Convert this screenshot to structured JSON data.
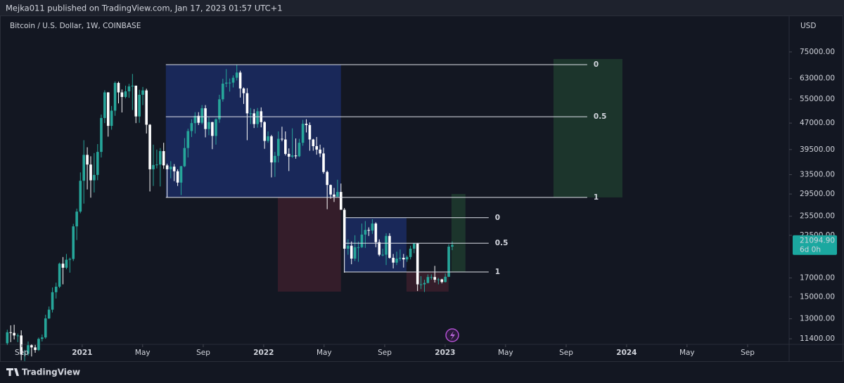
{
  "header": {
    "text": "Mejka011 published on TradingView.com, Jan 17, 2023 01:57 UTC+1"
  },
  "footer": {
    "brand": "TradingView"
  },
  "chart_data": {
    "type": "candlestick",
    "title": "Bitcoin / U.S. Dollar, 1W, COINBASE",
    "y_axis_label": "USD",
    "log_scale": true,
    "grid": false,
    "up_color": "#26a69a",
    "down_color": "#ffffff",
    "xlim": [
      2020.547,
      2024.888
    ],
    "xticks": [
      {
        "value": 2020.667,
        "label": "Sep"
      },
      2021,
      {
        "value": 2021.333,
        "label": "May"
      },
      {
        "value": 2021.667,
        "label": "Sep"
      },
      2022,
      {
        "value": 2022.333,
        "label": "May"
      },
      {
        "value": 2022.667,
        "label": "Sep"
      },
      2023,
      {
        "value": 2023.333,
        "label": "May"
      },
      {
        "value": 2023.667,
        "label": "Sep"
      },
      2024,
      {
        "value": 2024.333,
        "label": "May"
      },
      {
        "value": 2024.667,
        "label": "Sep"
      }
    ],
    "ylim": [
      10990,
      92700
    ],
    "yticks": [
      {
        "value": 75000,
        "label": "75000.00"
      },
      {
        "value": 63000,
        "label": "63000.00"
      },
      {
        "value": 55000,
        "label": "55000.00"
      },
      {
        "value": 47000,
        "label": "47000.00"
      },
      {
        "value": 39500,
        "label": "39500.00"
      },
      {
        "value": 33500,
        "label": "33500.00"
      },
      {
        "value": 29500,
        "label": "29500.00"
      },
      {
        "value": 25500,
        "label": "25500.00"
      },
      {
        "value": 22500,
        "label": "22500.00"
      },
      {
        "value": 17000,
        "label": "17000.00"
      },
      {
        "value": 15000,
        "label": "15000.00"
      },
      {
        "value": 13000,
        "label": "13000.00"
      },
      {
        "value": 11400,
        "label": "11400.00"
      }
    ],
    "last_price_label": "21094.90",
    "countdown": "6d 0h",
    "x": [
      2020.587,
      2020.606,
      2020.625,
      2020.645,
      2020.664,
      2020.683,
      2020.702,
      2020.721,
      2020.741,
      2020.76,
      2020.779,
      2020.798,
      2020.817,
      2020.836,
      2020.856,
      2020.875,
      2020.894,
      2020.913,
      2020.932,
      2020.951,
      2020.97,
      2020.99,
      2021.009,
      2021.028,
      2021.047,
      2021.066,
      2021.085,
      2021.105,
      2021.124,
      2021.143,
      2021.162,
      2021.181,
      2021.2,
      2021.219,
      2021.239,
      2021.258,
      2021.277,
      2021.296,
      2021.315,
      2021.334,
      2021.354,
      2021.373,
      2021.392,
      2021.411,
      2021.43,
      2021.449,
      2021.468,
      2021.488,
      2021.507,
      2021.526,
      2021.545,
      2021.564,
      2021.583,
      2021.603,
      2021.622,
      2021.641,
      2021.66,
      2021.679,
      2021.698,
      2021.717,
      2021.737,
      2021.756,
      2021.775,
      2021.794,
      2021.813,
      2021.832,
      2021.852,
      2021.871,
      2021.89,
      2021.909,
      2021.928,
      2021.947,
      2021.966,
      2021.986,
      2022.005,
      2022.024,
      2022.043,
      2022.062,
      2022.081,
      2022.101,
      2022.12,
      2022.139,
      2022.158,
      2022.177,
      2022.196,
      2022.216,
      2022.235,
      2022.254,
      2022.273,
      2022.292,
      2022.311,
      2022.33,
      2022.35,
      2022.369,
      2022.388,
      2022.407,
      2022.426,
      2022.445,
      2022.465,
      2022.484,
      2022.503,
      2022.522,
      2022.541,
      2022.56,
      2022.579,
      2022.599,
      2022.618,
      2022.637,
      2022.656,
      2022.675,
      2022.694,
      2022.714,
      2022.733,
      2022.752,
      2022.771,
      2022.79,
      2022.809,
      2022.829,
      2022.848,
      2022.867,
      2022.886,
      2022.905,
      2022.924,
      2022.943,
      2022.963,
      2022.982,
      2023.001,
      2023.02,
      2023.039
    ],
    "ohlc": [
      [
        11070,
        12100,
        10950,
        11900
      ],
      [
        11900,
        12450,
        11150,
        11850
      ],
      [
        11850,
        12500,
        11350,
        11650
      ],
      [
        11650,
        11800,
        11150,
        11650
      ],
      [
        11650,
        12050,
        9900,
        10280
      ],
      [
        10280,
        10600,
        9850,
        10330
      ],
      [
        10330,
        11200,
        10200,
        10930
      ],
      [
        10930,
        10990,
        10150,
        10770
      ],
      [
        10770,
        10950,
        10400,
        10590
      ],
      [
        10590,
        11490,
        10520,
        11390
      ],
      [
        11390,
        11720,
        11200,
        11500
      ],
      [
        11500,
        13350,
        11400,
        13030
      ],
      [
        13030,
        14090,
        12980,
        13800
      ],
      [
        13800,
        15970,
        13550,
        15480
      ],
      [
        15480,
        16480,
        14850,
        16050
      ],
      [
        16050,
        18800,
        15900,
        18670
      ],
      [
        18670,
        19500,
        16300,
        18180
      ],
      [
        18180,
        19900,
        18000,
        19160
      ],
      [
        19160,
        19420,
        17600,
        19250
      ],
      [
        19250,
        24250,
        19000,
        23850
      ],
      [
        23850,
        26800,
        21800,
        26280
      ],
      [
        26280,
        34000,
        26000,
        32180
      ],
      [
        32180,
        42000,
        27700,
        38150
      ],
      [
        38150,
        40100,
        30400,
        35800
      ],
      [
        35800,
        37800,
        28800,
        32280
      ],
      [
        32280,
        38600,
        29800,
        33440
      ],
      [
        33440,
        40950,
        32300,
        38900
      ],
      [
        38900,
        49700,
        37500,
        48600
      ],
      [
        48600,
        58300,
        47000,
        57500
      ],
      [
        57500,
        57600,
        43000,
        46150
      ],
      [
        46150,
        52600,
        45000,
        51000
      ],
      [
        51000,
        61800,
        49300,
        61200
      ],
      [
        61200,
        61700,
        53500,
        57500
      ],
      [
        57500,
        58600,
        50400,
        55800
      ],
      [
        55800,
        60100,
        55300,
        57900
      ],
      [
        57900,
        60800,
        55500,
        59800
      ],
      [
        59800,
        64900,
        51200,
        60100
      ],
      [
        60100,
        60100,
        47000,
        49100
      ],
      [
        49100,
        58500,
        47100,
        56600
      ],
      [
        56600,
        59600,
        52900,
        58250
      ],
      [
        58250,
        58900,
        43900,
        46500
      ],
      [
        46500,
        46700,
        30000,
        34700
      ],
      [
        34700,
        40800,
        31100,
        35700
      ],
      [
        35700,
        39500,
        34900,
        35800
      ],
      [
        35800,
        39900,
        31000,
        39100
      ],
      [
        39100,
        41300,
        34800,
        35600
      ],
      [
        35600,
        36000,
        28800,
        34700
      ],
      [
        34700,
        36600,
        32700,
        35300
      ],
      [
        35300,
        35900,
        32100,
        34250
      ],
      [
        34250,
        34700,
        31100,
        31800
      ],
      [
        31800,
        35500,
        29300,
        35400
      ],
      [
        35400,
        42600,
        35200,
        39900
      ],
      [
        39900,
        45300,
        37500,
        44600
      ],
      [
        44600,
        48200,
        42900,
        47000
      ],
      [
        47000,
        50500,
        43900,
        49300
      ],
      [
        49300,
        50500,
        46400,
        47100
      ],
      [
        47100,
        52900,
        46600,
        51800
      ],
      [
        51800,
        52900,
        42800,
        45200
      ],
      [
        45200,
        48800,
        43400,
        47300
      ],
      [
        47300,
        47400,
        39600,
        43200
      ],
      [
        43200,
        48500,
        40800,
        48200
      ],
      [
        48200,
        56600,
        47100,
        54950
      ],
      [
        54950,
        62900,
        54100,
        60900
      ],
      [
        60900,
        67000,
        59500,
        61300
      ],
      [
        61300,
        63000,
        57800,
        61300
      ],
      [
        61300,
        64300,
        59400,
        63300
      ],
      [
        63300,
        69000,
        62200,
        65500
      ],
      [
        65500,
        66300,
        55600,
        59000
      ],
      [
        59000,
        59400,
        53300,
        57200
      ],
      [
        57200,
        59100,
        42000,
        50100
      ],
      [
        50100,
        51900,
        46700,
        50100
      ],
      [
        50100,
        51500,
        45500,
        46700
      ],
      [
        46700,
        51900,
        45600,
        50800
      ],
      [
        50800,
        52100,
        45700,
        47300
      ],
      [
        47300,
        47600,
        39700,
        41800
      ],
      [
        41800,
        44500,
        41300,
        43100
      ],
      [
        43100,
        43500,
        32900,
        36300
      ],
      [
        36300,
        38900,
        33000,
        37900
      ],
      [
        37900,
        44500,
        36300,
        42400
      ],
      [
        42400,
        45900,
        41700,
        42200
      ],
      [
        42200,
        44500,
        38000,
        38400
      ],
      [
        38400,
        39800,
        34300,
        37700
      ],
      [
        37700,
        45400,
        37400,
        38000
      ],
      [
        38000,
        42500,
        37200,
        37800
      ],
      [
        37800,
        42400,
        37600,
        41300
      ],
      [
        41300,
        48000,
        40500,
        46800
      ],
      [
        46800,
        48200,
        44200,
        46400
      ],
      [
        46400,
        47200,
        39200,
        42200
      ],
      [
        42200,
        42400,
        39200,
        40400
      ],
      [
        40400,
        42900,
        38200,
        39500
      ],
      [
        39500,
        40800,
        37600,
        38500
      ],
      [
        38500,
        40000,
        33700,
        34100
      ],
      [
        34100,
        34400,
        26700,
        31300
      ],
      [
        31300,
        31400,
        28600,
        29400
      ],
      [
        29400,
        30700,
        28000,
        29000
      ],
      [
        29000,
        32400,
        29000,
        29900
      ],
      [
        29900,
        31600,
        26600,
        26600
      ],
      [
        26600,
        26900,
        17600,
        20600
      ],
      [
        20600,
        21900,
        19800,
        21000
      ],
      [
        21000,
        21600,
        18600,
        19300
      ],
      [
        19300,
        22500,
        19000,
        20800
      ],
      [
        20800,
        21600,
        18900,
        20800
      ],
      [
        20800,
        24300,
        20700,
        22600
      ],
      [
        22600,
        24700,
        20700,
        23300
      ],
      [
        23300,
        23700,
        22400,
        23200
      ],
      [
        23200,
        25000,
        22700,
        24300
      ],
      [
        24300,
        24500,
        20800,
        21500
      ],
      [
        21500,
        21900,
        19600,
        19800
      ],
      [
        19800,
        20600,
        19600,
        19800
      ],
      [
        19800,
        22800,
        18500,
        22400
      ],
      [
        22400,
        22800,
        19300,
        19400
      ],
      [
        19400,
        19900,
        18100,
        18800
      ],
      [
        18800,
        20200,
        18500,
        19300
      ],
      [
        19300,
        20500,
        19000,
        19400
      ],
      [
        19400,
        19900,
        18200,
        19200
      ],
      [
        19200,
        19700,
        18900,
        19500
      ],
      [
        19500,
        21000,
        19200,
        20600
      ],
      [
        20600,
        21400,
        20000,
        21300
      ],
      [
        21300,
        21400,
        15600,
        16300
      ],
      [
        16300,
        17200,
        15800,
        16300
      ],
      [
        16300,
        16800,
        15500,
        16450
      ],
      [
        16450,
        17400,
        16400,
        17100
      ],
      [
        17100,
        17400,
        16800,
        17100
      ],
      [
        17100,
        18400,
        16500,
        16800
      ],
      [
        16800,
        17000,
        16300,
        16840
      ],
      [
        16840,
        16900,
        16400,
        16550
      ],
      [
        16550,
        17500,
        16500,
        17130
      ],
      [
        17130,
        21200,
        17100,
        20880
      ],
      [
        20880,
        21600,
        20400,
        21094.9
      ]
    ],
    "zones": [
      {
        "color": "#1b2b63",
        "x": [
          2021.461,
          2022.426
        ],
        "y": [
          28850,
          69000
        ]
      },
      {
        "color": "#3b1e2c",
        "x": [
          2022.078,
          2022.426
        ],
        "y": [
          15540,
          28850
        ]
      },
      {
        "color": "#1b2b63",
        "x": [
          2022.442,
          2022.787
        ],
        "y": [
          17680,
          25250
        ]
      },
      {
        "color": "#3b1e2c",
        "x": [
          2022.787,
          2023.019
        ],
        "y": [
          15540,
          17680
        ]
      },
      {
        "color": "#1e3b2e",
        "x": [
          2023.035,
          2023.112
        ],
        "y": [
          17680,
          29500
        ]
      },
      {
        "color": "#1e3b2e",
        "x": [
          2023.597,
          2023.977
        ],
        "y": [
          28850,
          71600
        ]
      }
    ],
    "fibs": [
      {
        "x": [
          2021.461,
          2023.783
        ],
        "levels": [
          {
            "value": 69000,
            "label": "0"
          },
          {
            "value": 49000,
            "label": "0.5"
          },
          {
            "value": 28850,
            "label": "1"
          }
        ]
      },
      {
        "x": [
          2022.442,
          2023.24
        ],
        "levels": [
          {
            "value": 25250,
            "label": "0"
          },
          {
            "value": 21350,
            "label": "0.5"
          },
          {
            "value": 17680,
            "label": "1"
          }
        ]
      }
    ]
  }
}
